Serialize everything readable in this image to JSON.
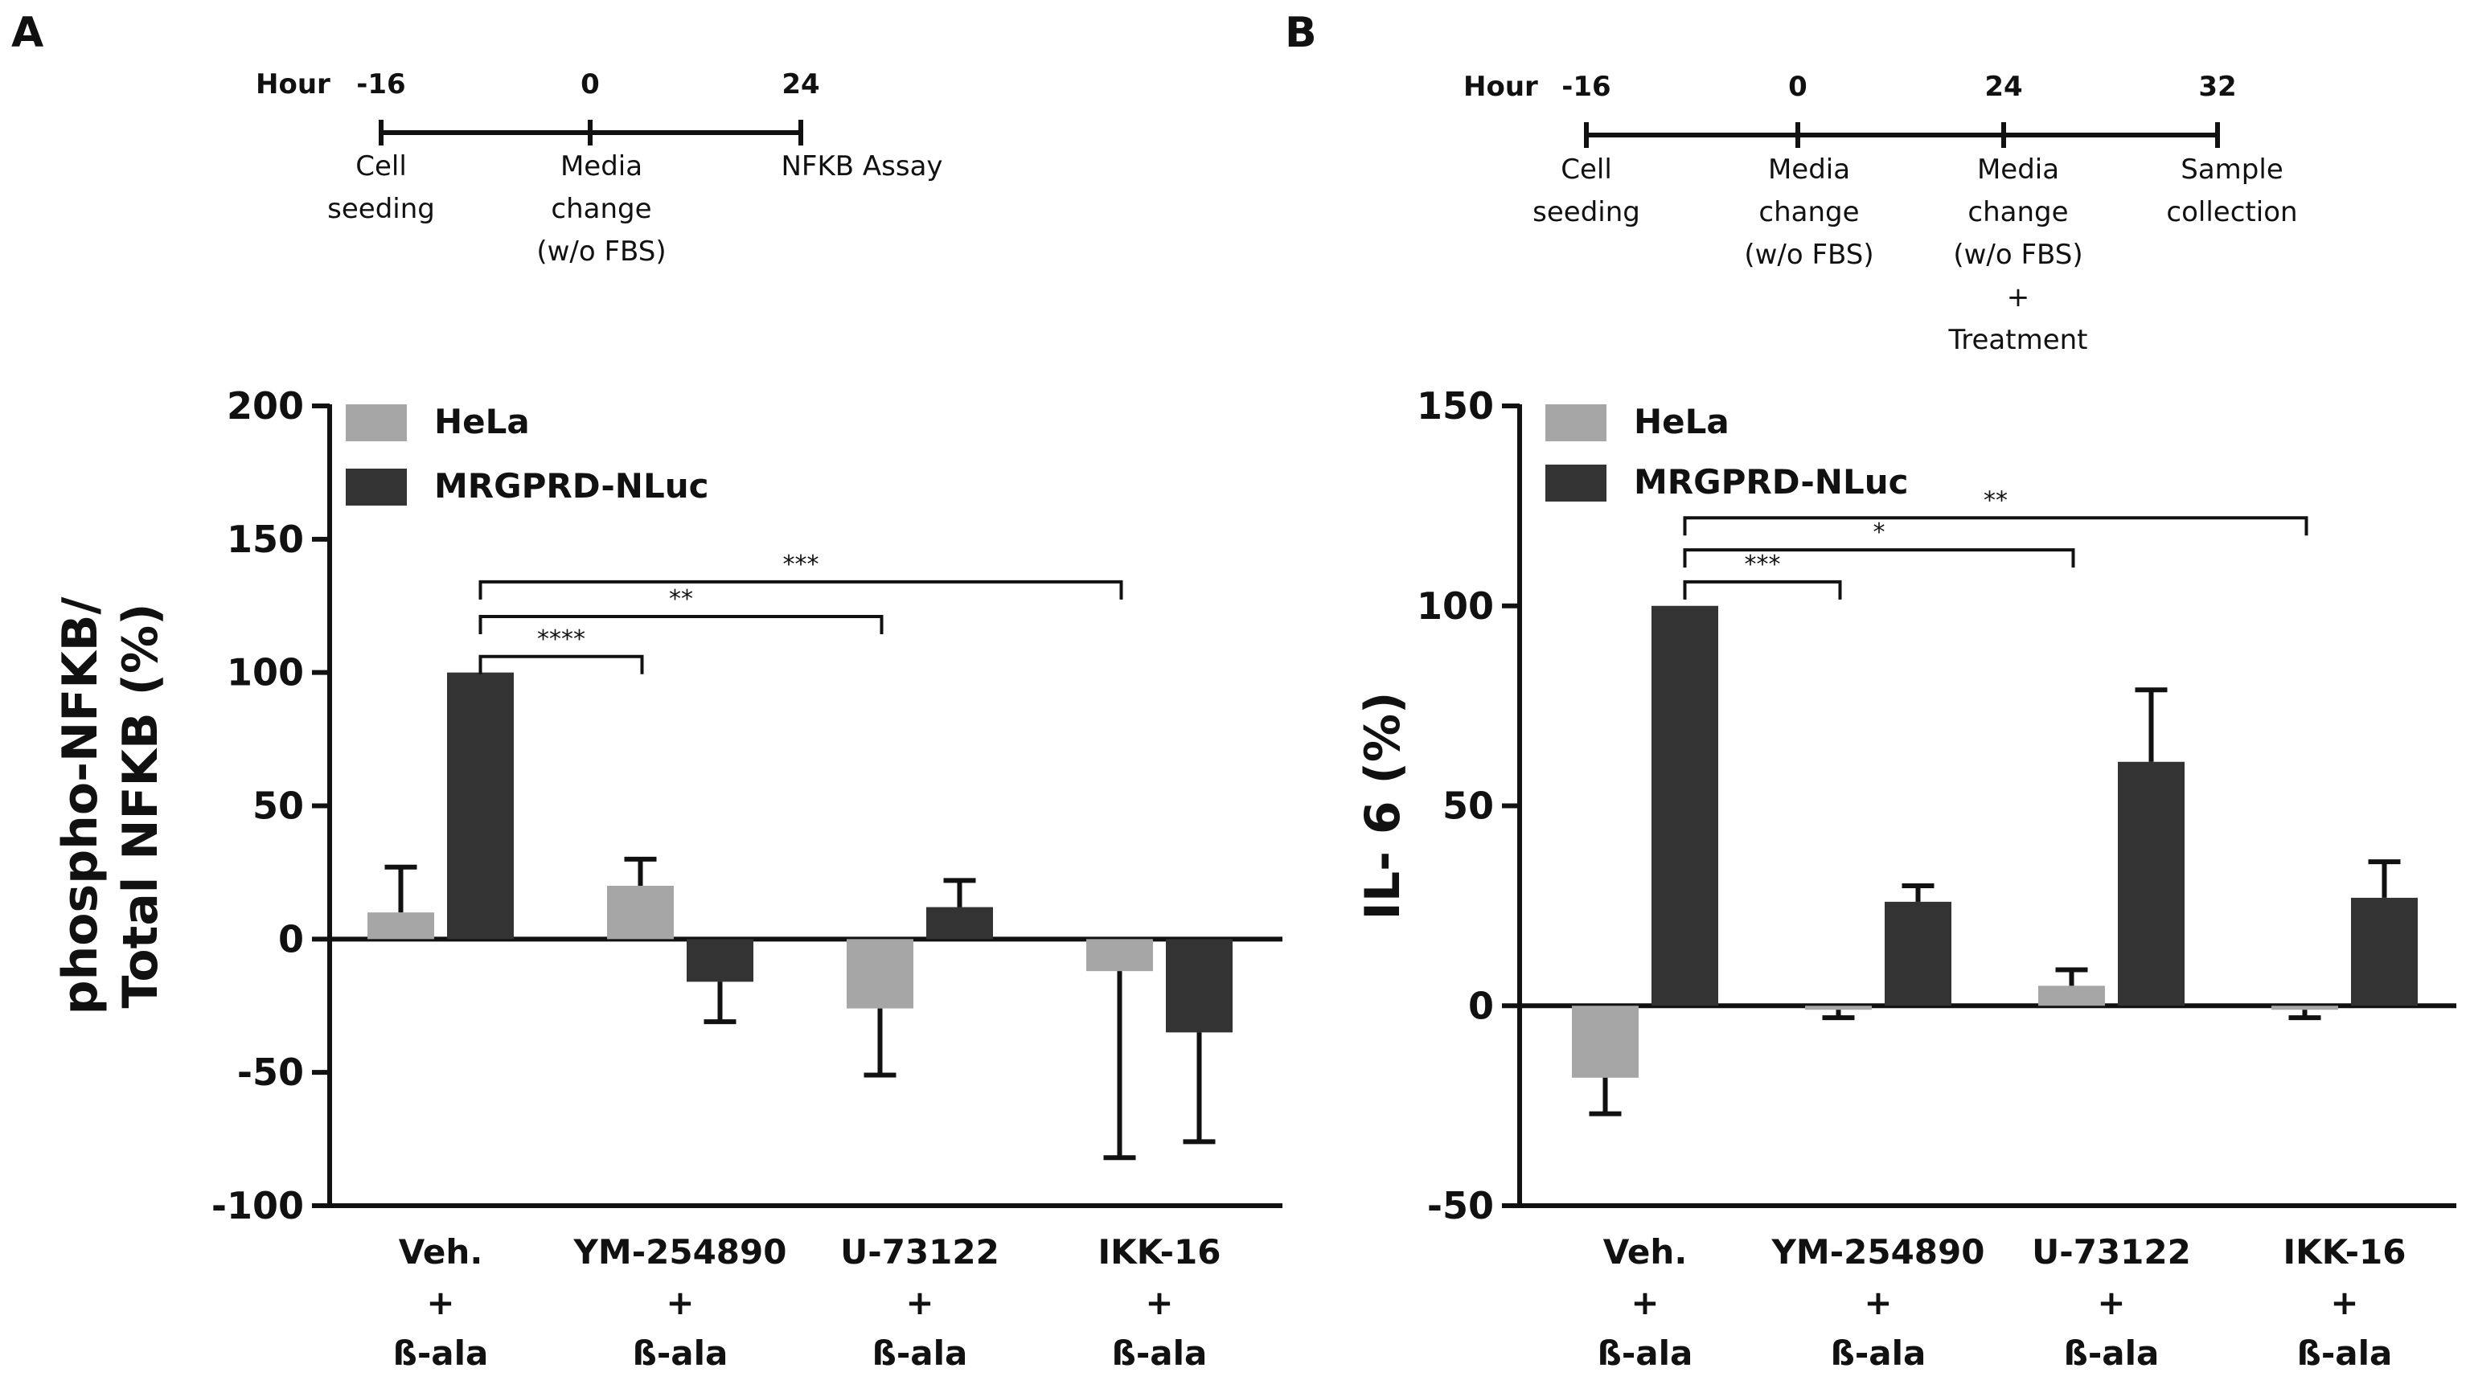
{
  "panels": [
    {
      "letter": "A",
      "timeline": {
        "label": "Hour",
        "points": [
          {
            "hour": "-16",
            "desc": [
              "Cell",
              "seeding"
            ]
          },
          {
            "hour": "0",
            "desc": [
              "Media",
              "change",
              "(w/o FBS)"
            ]
          },
          {
            "hour": "24",
            "desc": [
              "NFKB  Assay"
            ]
          }
        ]
      },
      "chart_data": {
        "type": "bar",
        "ylabel": [
          "phospho-NFKB/",
          "Total NFKB (%)"
        ],
        "ylim": [
          -100,
          200
        ],
        "yticks": [
          -100,
          -50,
          0,
          50,
          100,
          150,
          200
        ],
        "categories": [
          [
            "Veh.",
            "+",
            "ß-ala"
          ],
          [
            "YM-254890",
            "+",
            "ß-ala"
          ],
          [
            "U-73122",
            "+",
            "ß-ala"
          ],
          [
            "IKK-16",
            "+",
            "ß-ala"
          ]
        ],
        "legend_placement": "top-left",
        "series": [
          {
            "name": "HeLa",
            "color": "#a6a6a6",
            "values": [
              10,
              20,
              -26,
              -12
            ],
            "errors": [
              17,
              10,
              25,
              70
            ]
          },
          {
            "name": "MRGPRD-NLuc",
            "color": "#333333",
            "values": [
              100,
              -16,
              12,
              -35
            ],
            "errors": [
              0,
              15,
              10,
              41
            ]
          }
        ],
        "significance": [
          {
            "from": 0,
            "to": 1,
            "label": "****",
            "y": 106
          },
          {
            "from": 0,
            "to": 2,
            "label": "**",
            "y": 121
          },
          {
            "from": 0,
            "to": 3,
            "label": "***",
            "y": 134
          }
        ]
      }
    },
    {
      "letter": "B",
      "timeline": {
        "label": "Hour",
        "points": [
          {
            "hour": "-16",
            "desc": [
              "Cell",
              "seeding"
            ]
          },
          {
            "hour": "0",
            "desc": [
              "Media",
              "change",
              "(w/o FBS)"
            ]
          },
          {
            "hour": "24",
            "desc": [
              "Media",
              "change",
              "(w/o FBS)",
              "+",
              "Treatment"
            ]
          },
          {
            "hour": "32",
            "desc": [
              "Sample",
              "collection"
            ]
          }
        ]
      },
      "chart_data": {
        "type": "bar",
        "ylabel": [
          "IL- 6 (%)"
        ],
        "ylim": [
          -50,
          150
        ],
        "yticks": [
          -50,
          0,
          50,
          100,
          150
        ],
        "categories": [
          [
            "Veh.",
            "+",
            "ß-ala"
          ],
          [
            "YM-254890",
            "+",
            "ß-ala"
          ],
          [
            "U-73122",
            "+",
            "ß-ala"
          ],
          [
            "IKK-16",
            "+",
            "ß-ala"
          ]
        ],
        "legend_placement": "top-left",
        "series": [
          {
            "name": "HeLa",
            "color": "#a6a6a6",
            "values": [
              -18,
              -1,
              5,
              -1
            ],
            "errors": [
              9,
              2,
              4,
              2
            ]
          },
          {
            "name": "MRGPRD-NLuc",
            "color": "#333333",
            "values": [
              100,
              26,
              61,
              27
            ],
            "errors": [
              0,
              4,
              18,
              9
            ]
          }
        ],
        "significance": [
          {
            "from": 0,
            "to": 1,
            "label": "***",
            "y": 106
          },
          {
            "from": 0,
            "to": 2,
            "label": "*",
            "y": 114
          },
          {
            "from": 0,
            "to": 3,
            "label": "**",
            "y": 122
          }
        ]
      }
    }
  ]
}
